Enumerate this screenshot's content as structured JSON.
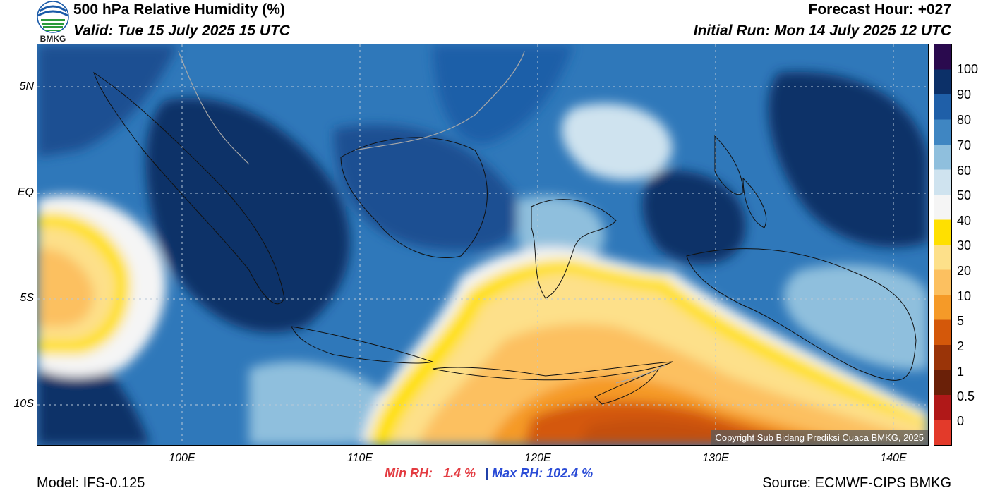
{
  "header": {
    "title": "500 hPa Relative Humidity (%)",
    "valid": "Valid: Tue 15 July 2025 15 UTC",
    "forecast_hour": "Forecast Hour: +027",
    "initial_run": "Initial Run: Mon 14 July 2025 12 UTC",
    "logo_text": "BMKG"
  },
  "map": {
    "lat_labels": [
      "5N",
      "EQ",
      "5S",
      "10S"
    ],
    "lon_labels": [
      "100E",
      "110E",
      "120E",
      "130E",
      "140E"
    ],
    "copyright": "Copyright Sub Bidang Prediksi Cuaca BMKG, 2025"
  },
  "colorbar": {
    "labels": [
      "100",
      "90",
      "80",
      "70",
      "60",
      "50",
      "40",
      "30",
      "20",
      "10",
      "5",
      "2",
      "1",
      "0.5",
      "0"
    ],
    "colors": [
      "#2a0a4e",
      "#0c3068",
      "#1f5fa8",
      "#3f86c2",
      "#8fbfdd",
      "#cfe3ef",
      "#f5f5f5",
      "#ffe000",
      "#fde08a",
      "#fcc060",
      "#f59a28",
      "#d4580a",
      "#9a3408",
      "#6a2008",
      "#b01818",
      "#e33a2a"
    ]
  },
  "stats": {
    "min_label": "Min RH:",
    "min_value": "1.4 %",
    "separator": "|",
    "max_label": "Max RH:",
    "max_value": "102.4 %"
  },
  "footer": {
    "model": "Model: IFS-0.125",
    "source": "Source: ECMWF-CIPS BMKG"
  }
}
